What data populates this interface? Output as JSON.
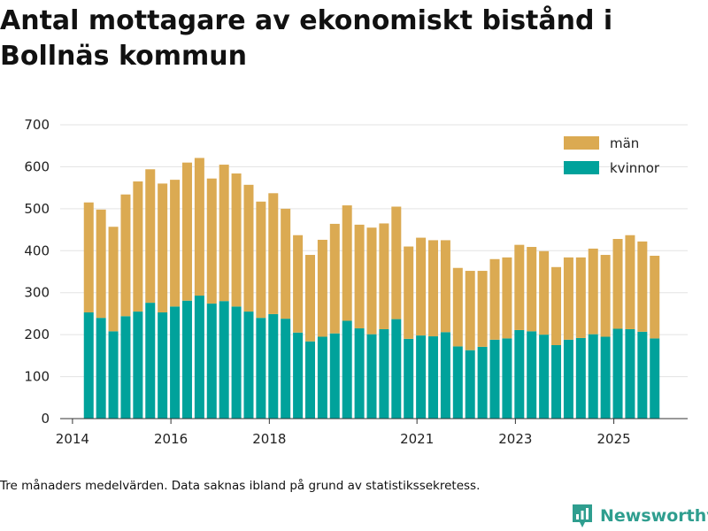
{
  "title": "Antal mottagare av ekonomiskt bistånd i Bollnäs kommun",
  "footnote": "Tre månaders medelvärden. Data saknas ibland på grund av statistikssekretess.",
  "brand": {
    "name": "Newsworthy",
    "icon": "bar-chart-logo-icon"
  },
  "colors": {
    "man": "#dbaa52",
    "kvinnor": "#00a29b"
  },
  "chart_data": {
    "type": "bar",
    "stacked": true,
    "title": "Antal mottagare av ekonomiskt bistånd i Bollnäs kommun",
    "xlabel": "",
    "ylabel": "",
    "ylim": [
      0,
      700
    ],
    "yticks": [
      0,
      100,
      200,
      300,
      400,
      500,
      600,
      700
    ],
    "xlim": [
      2013.75,
      2026.5
    ],
    "xticks": [
      {
        "label": "2014",
        "value": 2014.0
      },
      {
        "label": "2016",
        "value": 2016.0
      },
      {
        "label": "2018",
        "value": 2018.0
      },
      {
        "label": "2021",
        "value": 2021.0
      },
      {
        "label": "2023",
        "value": 2023.0
      },
      {
        "label": "2025",
        "value": 2025.0
      }
    ],
    "grid": true,
    "legend_position": "top-right",
    "x": [
      2014.33,
      2014.58,
      2014.83,
      2015.08,
      2015.33,
      2015.58,
      2015.83,
      2016.08,
      2016.33,
      2016.58,
      2016.83,
      2017.08,
      2017.33,
      2017.58,
      2017.83,
      2018.08,
      2018.33,
      2018.58,
      2018.83,
      2019.08,
      2019.33,
      2019.58,
      2019.83,
      2020.08,
      2020.33,
      2020.58,
      2020.83,
      2021.08,
      2021.33,
      2021.58,
      2021.83,
      2022.08,
      2022.33,
      2022.58,
      2022.83,
      2023.08,
      2023.33,
      2023.58,
      2023.83,
      2024.08,
      2024.33,
      2024.58,
      2024.83,
      2025.08,
      2025.33,
      2025.58,
      2025.83
    ],
    "series": [
      {
        "name": "kvinnor",
        "values": [
          253,
          240,
          208,
          244,
          255,
          276,
          253,
          267,
          281,
          293,
          274,
          280,
          267,
          255,
          240,
          249,
          238,
          205,
          184,
          195,
          203,
          233,
          215,
          201,
          213,
          237,
          190,
          198,
          196,
          206,
          172,
          163,
          171,
          188,
          191,
          211,
          208,
          200,
          175,
          188,
          192,
          201,
          195,
          214,
          213,
          207,
          191
        ]
      },
      {
        "name": "män",
        "values": [
          262,
          258,
          249,
          290,
          310,
          318,
          307,
          302,
          329,
          328,
          298,
          325,
          317,
          302,
          277,
          288,
          262,
          232,
          206,
          231,
          261,
          275,
          247,
          254,
          252,
          268,
          220,
          233,
          229,
          219,
          187,
          189,
          181,
          192,
          193,
          203,
          201,
          199,
          186,
          196,
          192,
          204,
          195,
          214,
          224,
          215,
          197
        ]
      }
    ],
    "legend": [
      "män",
      "kvinnor"
    ]
  }
}
